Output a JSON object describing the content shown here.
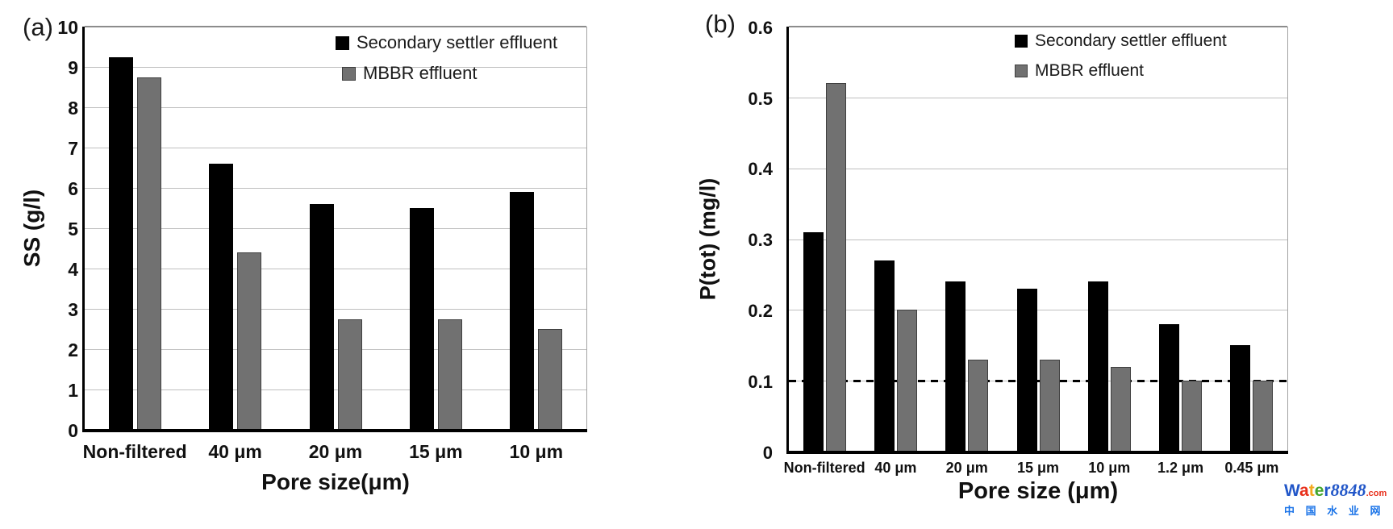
{
  "page": {
    "background": "#ffffff"
  },
  "colors": {
    "series_black": "#000000",
    "series_gray": "#717171",
    "gray_border": "#3f3f3f",
    "gridline": "#bfbfbf",
    "axis": "#000000",
    "text": "#111111"
  },
  "legend": {
    "items": [
      {
        "label": "Secondary settler effluent",
        "color": "#000000"
      },
      {
        "label": "MBBR effluent",
        "color": "#717171"
      }
    ]
  },
  "chart_data": [
    {
      "id": "a",
      "type": "bar",
      "panel_label": "(a)",
      "title": "",
      "xlabel": "Pore size(μm)",
      "ylabel": "SS (g/l)",
      "ylim": [
        0,
        10
      ],
      "yticks": [
        0,
        1,
        2,
        3,
        4,
        5,
        6,
        7,
        8,
        9,
        10
      ],
      "categories": [
        "Non-filtered",
        "40 μm",
        "20 μm",
        "15 μm",
        "10 μm"
      ],
      "series": [
        {
          "name": "Secondary settler effluent",
          "color": "#000000",
          "values": [
            9.25,
            6.6,
            5.6,
            5.5,
            5.9
          ]
        },
        {
          "name": "MBBR effluent",
          "color": "#717171",
          "values": [
            8.75,
            4.4,
            2.75,
            2.75,
            2.5
          ]
        }
      ],
      "grid": true,
      "legend_position": "inside-top-right"
    },
    {
      "id": "b",
      "type": "bar",
      "panel_label": "(b)",
      "title": "",
      "xlabel": "Pore size (μm)",
      "ylabel": "P(tot) (mg/l)",
      "ylim": [
        0,
        0.6
      ],
      "yticks": [
        0,
        0.1,
        0.2,
        0.3,
        0.4,
        0.5,
        0.6
      ],
      "categories": [
        "Non-filtered",
        "40 μm",
        "20 μm",
        "15 μm",
        "10 μm",
        "1.2 μm",
        "0.45 μm"
      ],
      "series": [
        {
          "name": "Secondary settler effluent",
          "color": "#000000",
          "values": [
            0.31,
            0.27,
            0.24,
            0.23,
            0.24,
            0.18,
            0.15
          ]
        },
        {
          "name": "MBBR effluent",
          "color": "#717171",
          "values": [
            0.52,
            0.2,
            0.13,
            0.13,
            0.12,
            0.1,
            0.1
          ]
        }
      ],
      "grid": true,
      "legend_position": "inside-top-right",
      "reference_line": {
        "y": 0.1,
        "style": "dashed",
        "color": "#000000"
      }
    }
  ],
  "watermark": {
    "brand_letters": [
      {
        "ch": "W",
        "color": "#2156c8"
      },
      {
        "ch": "a",
        "color": "#e8301c"
      },
      {
        "ch": "t",
        "color": "#f4a81d"
      },
      {
        "ch": "e",
        "color": "#43a52c"
      },
      {
        "ch": "r",
        "color": "#2156c8"
      }
    ],
    "brand_suffix": "8848",
    "brand_suffix_color": "#2156c8",
    "brand_domain": ".com",
    "brand_domain_color": "#e8301c",
    "subtitle": "中 国 水 业 网",
    "subtitle_color": "#1b74e8"
  }
}
